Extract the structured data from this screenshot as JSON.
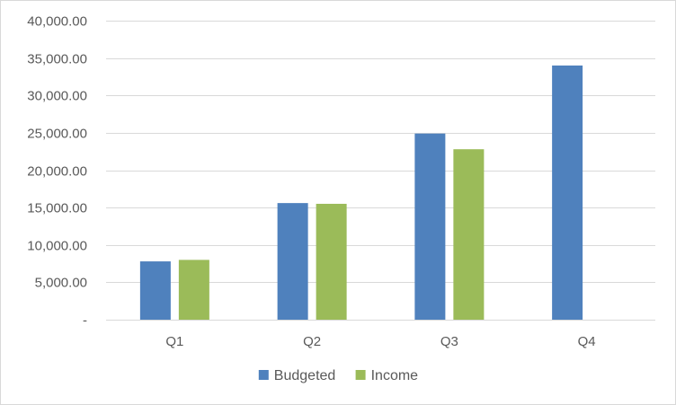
{
  "chart_data": {
    "type": "bar",
    "categories": [
      "Q1",
      "Q2",
      "Q3",
      "Q4"
    ],
    "series": [
      {
        "name": "Budgeted",
        "color": "#4f81bd",
        "values": [
          7800,
          15600,
          24900,
          34000
        ]
      },
      {
        "name": "Income",
        "color": "#9bbb59",
        "values": [
          8000,
          15500,
          22800,
          null
        ]
      }
    ],
    "ylim": [
      0,
      40000
    ],
    "y_ticks": [
      0,
      5000,
      10000,
      15000,
      20000,
      25000,
      30000,
      35000,
      40000
    ],
    "y_tick_labels": [
      "-",
      "5,000.00",
      "10,000.00",
      "15,000.00",
      "20,000.00",
      "25,000.00",
      "30,000.00",
      "35,000.00",
      "40,000.00"
    ],
    "grid": true,
    "legend_position": "bottom"
  }
}
